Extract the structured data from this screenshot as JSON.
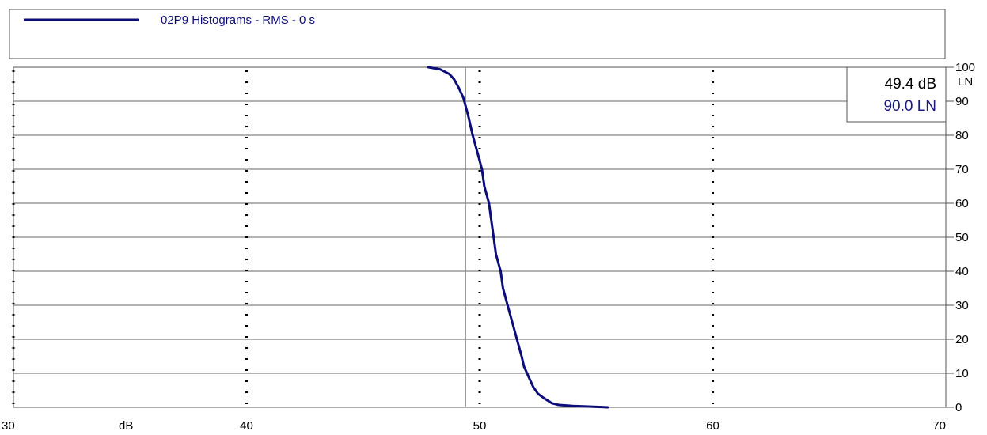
{
  "legend": {
    "label": "02P9 Histograms - RMS - 0 s",
    "color": "#0d0d7a"
  },
  "readout": {
    "x_text": "49.4 dB",
    "y_text": "90.0 LN",
    "cursor_x": 49.4,
    "cursor_y": 90.0
  },
  "axes": {
    "x_unit": "dB",
    "y_unit": "LN"
  },
  "chart_data": {
    "type": "line",
    "xlabel": "dB",
    "ylabel": "LN",
    "xlim": [
      30,
      70
    ],
    "ylim": [
      0,
      100
    ],
    "x_ticks": [
      30,
      40,
      50,
      60,
      70
    ],
    "y_ticks": [
      0,
      10,
      20,
      30,
      40,
      50,
      60,
      70,
      80,
      90,
      100
    ],
    "grid": {
      "x": "dotted",
      "y": "solid"
    },
    "legend_position": "top",
    "series": [
      {
        "name": "02P9 Histograms - RMS - 0 s",
        "color": "#0d0d7a",
        "x": [
          47.8,
          48.3,
          48.7,
          48.9,
          49.1,
          49.3,
          49.5,
          49.7,
          49.9,
          50.1,
          50.2,
          50.4,
          50.5,
          50.6,
          50.7,
          50.9,
          51.0,
          51.2,
          51.4,
          51.6,
          51.8,
          51.9,
          52.1,
          52.3,
          52.5,
          52.8,
          53.1,
          53.4,
          54.0,
          55.0,
          55.5
        ],
        "y": [
          100,
          99.4,
          98,
          96.5,
          94,
          91,
          86,
          80,
          75,
          70,
          65,
          60,
          55,
          50,
          45,
          40,
          35,
          30,
          25,
          20,
          15,
          12,
          9,
          6,
          4,
          2.5,
          1.2,
          0.7,
          0.4,
          0.15,
          0
        ]
      }
    ]
  }
}
